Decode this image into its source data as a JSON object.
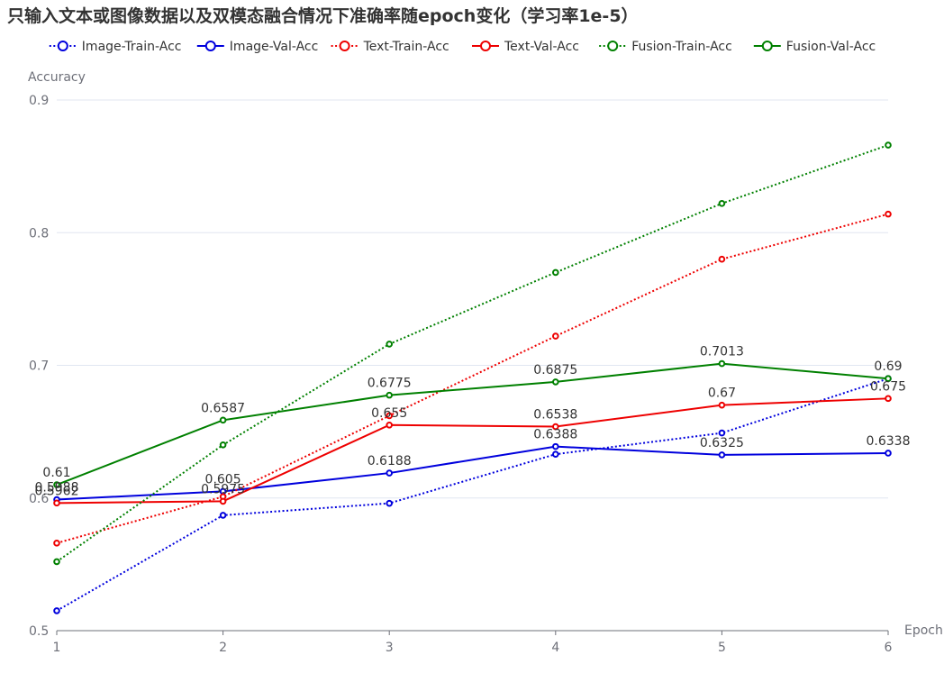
{
  "chart_data": {
    "type": "line",
    "title": "只输入文本或图像数据以及双模态融合情况下准确率随epoch变化（学习率1e-5）",
    "xlabel": "Epoch",
    "ylabel": "Accuracy",
    "x": [
      1,
      2,
      3,
      4,
      5,
      6
    ],
    "xticks": [
      "1",
      "2",
      "3",
      "4",
      "5",
      "6"
    ],
    "ylim": [
      0.5,
      0.9
    ],
    "yticks": [
      "0.5",
      "0.6",
      "0.7",
      "0.8",
      "0.9"
    ],
    "grid": true,
    "legend_position": "top",
    "series": [
      {
        "name": "Image-Train-Acc",
        "color": "#0000dd",
        "style": "dotted",
        "labels": false,
        "values": [
          0.515,
          0.587,
          0.596,
          0.633,
          0.649,
          0.69
        ]
      },
      {
        "name": "Image-Val-Acc",
        "color": "#0000dd",
        "style": "solid",
        "labels": true,
        "values": [
          0.5988,
          0.605,
          0.6188,
          0.6388,
          0.6325,
          0.6338
        ]
      },
      {
        "name": "Text-Train-Acc",
        "color": "#ee0000",
        "style": "dotted",
        "labels": false,
        "values": [
          0.566,
          0.601,
          0.662,
          0.722,
          0.78,
          0.814
        ]
      },
      {
        "name": "Text-Val-Acc",
        "color": "#ee0000",
        "style": "solid",
        "labels": true,
        "values": [
          0.5962,
          0.5975,
          0.655,
          0.6538,
          0.67,
          0.675
        ]
      },
      {
        "name": "Fusion-Train-Acc",
        "color": "#008000",
        "style": "dotted",
        "labels": false,
        "values": [
          0.552,
          0.64,
          0.716,
          0.77,
          0.822,
          0.866
        ]
      },
      {
        "name": "Fusion-Val-Acc",
        "color": "#008000",
        "style": "solid",
        "labels": true,
        "values": [
          0.61,
          0.6587,
          0.6775,
          0.6875,
          0.7013,
          0.69
        ]
      }
    ],
    "data_labels": {
      "Image-Val-Acc": [
        "0.5988",
        "0.605",
        "0.6188",
        "0.6388",
        "0.6325",
        "0.6338"
      ],
      "Text-Val-Acc": [
        "0.5962",
        "0.5975",
        "0.655",
        "0.6538",
        "0.67",
        "0.675"
      ],
      "Fusion-Val-Acc": [
        "0.61",
        "0.6587",
        "0.6775",
        "0.6875",
        "0.7013",
        "0.69"
      ]
    }
  }
}
